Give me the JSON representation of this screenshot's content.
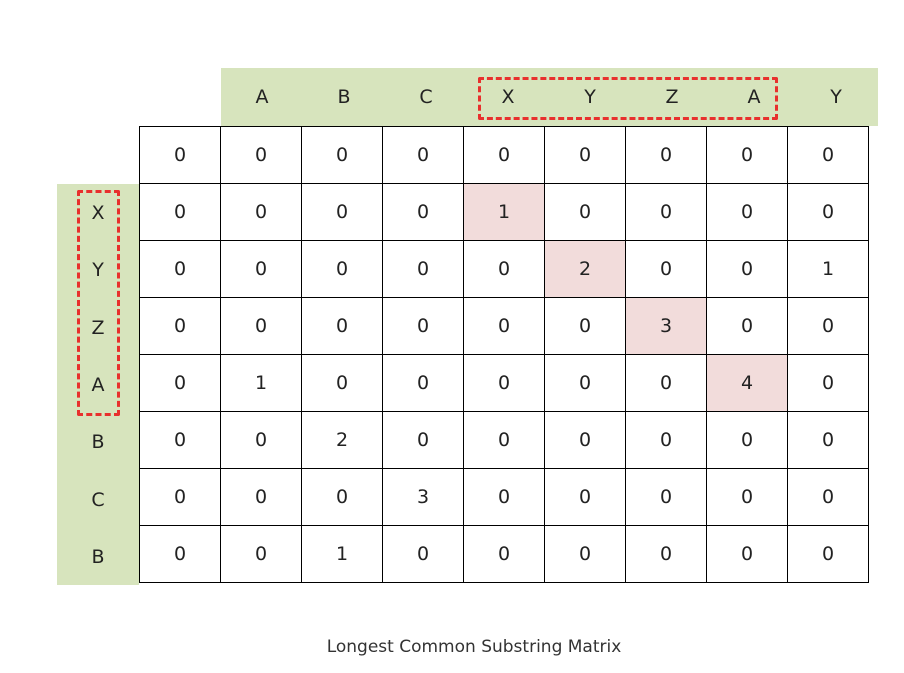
{
  "colors": {
    "header_band": "#d7e4bd",
    "highlight_cell": "#f2dcdb",
    "dashed_box": "#e8302d"
  },
  "column_headers": [
    "A",
    "B",
    "C",
    "X",
    "Y",
    "Z",
    "A",
    "Y"
  ],
  "row_headers": [
    "X",
    "Y",
    "Z",
    "A",
    "B",
    "C",
    "B"
  ],
  "matrix": [
    [
      0,
      0,
      0,
      0,
      0,
      0,
      0,
      0,
      0
    ],
    [
      0,
      0,
      0,
      0,
      1,
      0,
      0,
      0,
      0
    ],
    [
      0,
      0,
      0,
      0,
      0,
      2,
      0,
      0,
      1
    ],
    [
      0,
      0,
      0,
      0,
      0,
      0,
      3,
      0,
      0
    ],
    [
      0,
      1,
      0,
      0,
      0,
      0,
      0,
      4,
      0
    ],
    [
      0,
      0,
      2,
      0,
      0,
      0,
      0,
      0,
      0
    ],
    [
      0,
      0,
      0,
      3,
      0,
      0,
      0,
      0,
      0
    ],
    [
      0,
      0,
      1,
      0,
      0,
      0,
      0,
      0,
      0
    ]
  ],
  "highlighted_cells": [
    [
      1,
      4
    ],
    [
      2,
      5
    ],
    [
      3,
      6
    ],
    [
      4,
      7
    ]
  ],
  "caption": "Longest Common Substring Matrix"
}
